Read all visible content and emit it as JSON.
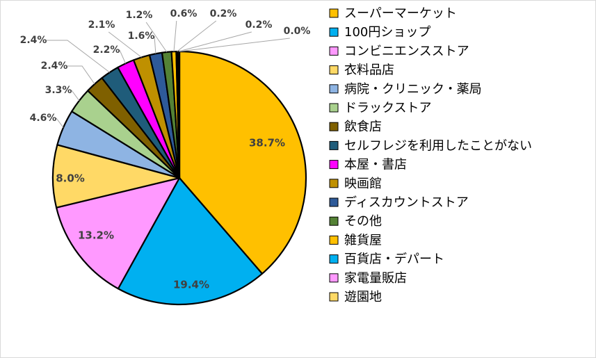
{
  "chart_data": {
    "type": "pie",
    "title": "",
    "legend_position": "right",
    "series": [
      {
        "name": "スーパーマーケット",
        "value": 38.7,
        "label": "38.7%",
        "color": "#FFC000"
      },
      {
        "name": "100円ショップ",
        "value": 19.4,
        "label": "19.4%",
        "color": "#00B0F0"
      },
      {
        "name": "コンビニエンスストア",
        "value": 13.2,
        "label": "13.2%",
        "color": "#FF99FF"
      },
      {
        "name": "衣料品店",
        "value": 8.0,
        "label": "8.0%",
        "color": "#FFD966"
      },
      {
        "name": "病院・クリニック・薬局",
        "value": 4.6,
        "label": "4.6%",
        "color": "#8EB4E3"
      },
      {
        "name": "ドラックストア",
        "value": 3.3,
        "label": "3.3%",
        "color": "#A9D18E"
      },
      {
        "name": "飲食店",
        "value": 2.4,
        "label": "2.4%",
        "color": "#7F6000"
      },
      {
        "name": "セルフレジを利用したことがない",
        "value": 2.4,
        "label": "2.4%",
        "color": "#1F5C7A"
      },
      {
        "name": "本屋・書店",
        "value": 2.2,
        "label": "2.2%",
        "color": "#FF00FF"
      },
      {
        "name": "映画館",
        "value": 2.1,
        "label": "2.1%",
        "color": "#BF9000"
      },
      {
        "name": "ディスカウントストア",
        "value": 1.6,
        "label": "1.6%",
        "color": "#2E5A99"
      },
      {
        "name": "その他",
        "value": 1.2,
        "label": "1.2%",
        "color": "#548235"
      },
      {
        "name": "雑貨屋",
        "value": 0.6,
        "label": "0.6%",
        "color": "#FFC000"
      },
      {
        "name": "百貨店・デパート",
        "value": 0.2,
        "label": "0.2%",
        "color": "#00B0F0"
      },
      {
        "name": "家電量販店",
        "value": 0.2,
        "label": "0.2%",
        "color": "#FF99FF"
      },
      {
        "name": "遊園地",
        "value": 0.0,
        "label": "0.0%",
        "color": "#FFD966"
      }
    ]
  }
}
